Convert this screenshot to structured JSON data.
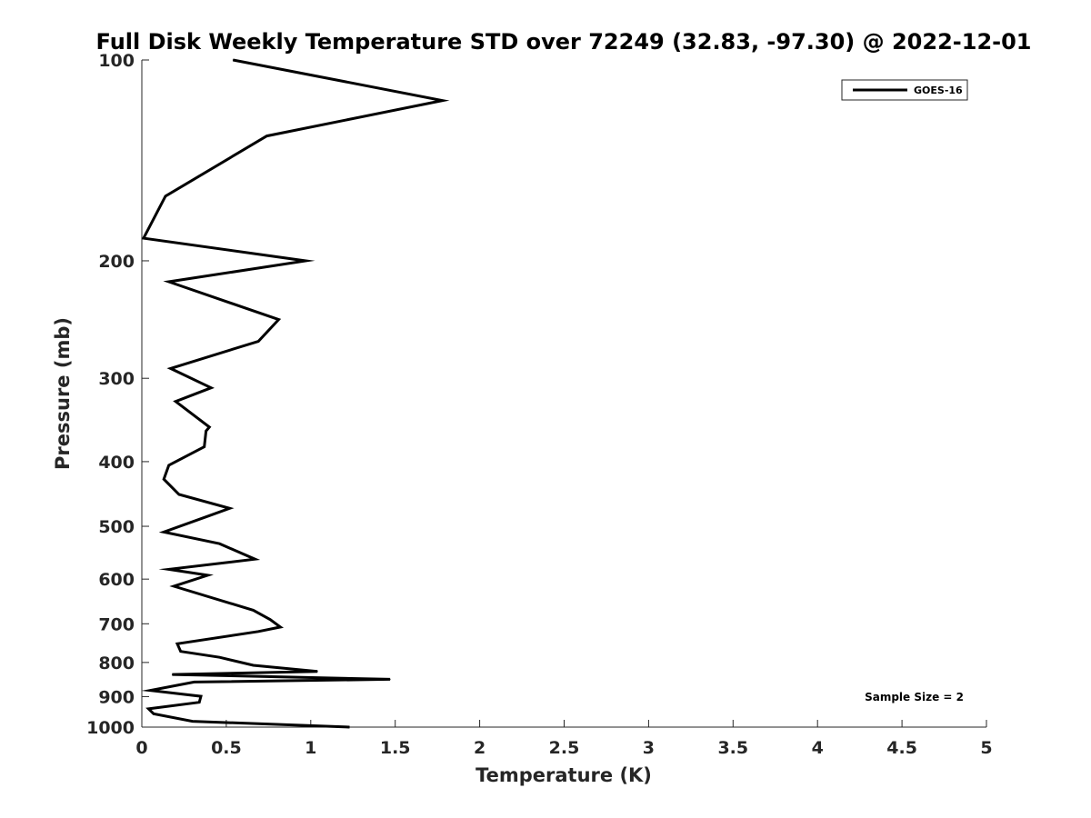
{
  "chart_data": {
    "type": "line",
    "title": "Full Disk Weekly Temperature STD over 72249 (32.83, -97.30) @ 2022-12-01",
    "xlabel": "Temperature (K)",
    "ylabel": "Pressure (mb)",
    "xlim": [
      0,
      5
    ],
    "ylim": [
      100,
      1000
    ],
    "y_scale": "log",
    "y_reversed": true,
    "x_ticks": [
      "0",
      "0.5",
      "1",
      "1.5",
      "2",
      "2.5",
      "3",
      "3.5",
      "4",
      "4.5",
      "5"
    ],
    "y_ticks": [
      "100",
      "200",
      "300",
      "400",
      "500",
      "600",
      "700",
      "800",
      "900",
      "1000"
    ],
    "grid": false,
    "legend_position": "top-right",
    "series": [
      {
        "name": "GOES-16",
        "color": "#000000",
        "x": [
          0.54,
          1.78,
          0.74,
          0.14,
          0.01,
          0.97,
          0.16,
          0.81,
          0.69,
          0.17,
          0.41,
          0.2,
          0.4,
          0.38,
          0.37,
          0.16,
          0.13,
          0.22,
          0.52,
          0.38,
          0.13,
          0.46,
          0.67,
          0.16,
          0.39,
          0.19,
          0.66,
          0.76,
          0.82,
          0.69,
          0.21,
          0.23,
          0.46,
          0.66,
          1.04,
          0.18,
          1.47,
          0.31,
          0.05,
          0.35,
          0.34,
          0.04,
          0.07,
          0.3,
          1.23
        ],
        "y": [
          100,
          115,
          130,
          160,
          185,
          200,
          215,
          245,
          264,
          290,
          310,
          325,
          355,
          360,
          380,
          405,
          425,
          448,
          470,
          484,
          510,
          531,
          560,
          580,
          592,
          615,
          668,
          690,
          708,
          719,
          750,
          770,
          786,
          808,
          825,
          834,
          848,
          856,
          881,
          899,
          918,
          939,
          955,
          980,
          1000
        ]
      }
    ],
    "annotations": [
      "Sample Size = 2"
    ]
  }
}
